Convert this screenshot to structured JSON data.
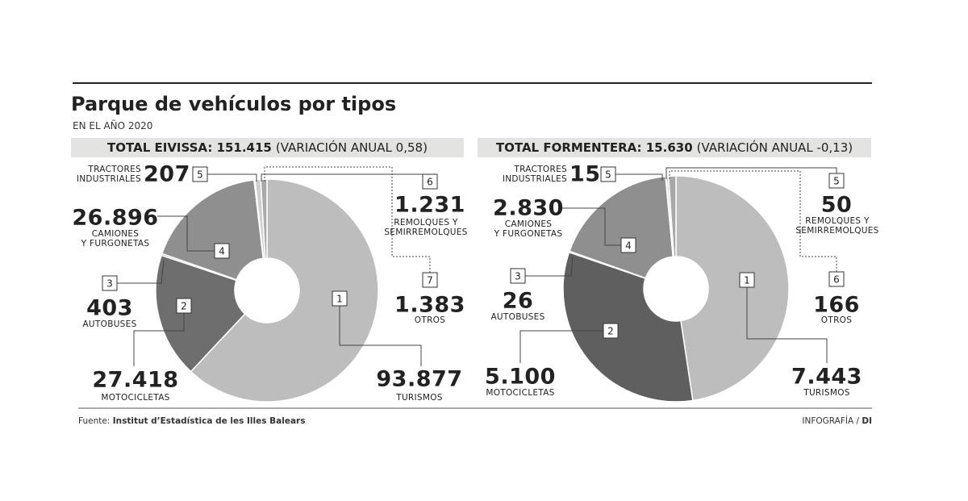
{
  "title": "Parque de vehículos por tipos",
  "subtitle": "EN EL AÑO 2020",
  "source_label": "Fuente:",
  "source": "Institut d’Estadística de les Illes Balears",
  "credit_label": "INFOGRAFÍA /",
  "credit": "DI",
  "chart_data": [
    {
      "type": "pie",
      "title": "TOTAL EIVISSA: 151.415",
      "subtitle": "(VARIACIÓN ANUAL 0,58)",
      "categories": [
        "TURISMOS",
        "MOTOCICLETAS",
        "AUTOBUSES",
        "CAMIONES\nY FURGONETAS",
        "TRACTORES\nINDUSTRIALES",
        "REMOLQUES Y\nSEMIRREMOLQUES",
        "OTROS"
      ],
      "slice_numbers": [
        1,
        2,
        3,
        4,
        5,
        6,
        7
      ],
      "values": [
        93877,
        27418,
        403,
        26896,
        207,
        1231,
        1383
      ],
      "value_labels": [
        "93.877",
        "27.418",
        "403",
        "26.896",
        "207",
        "1.231",
        "1.383"
      ],
      "colors": [
        "#bdbdbd",
        "#6e6e6e",
        "#b5b5b5",
        "#8f8f8f",
        "#c4c4c4",
        "#cfcfcf",
        "#a9a9a9"
      ]
    },
    {
      "type": "pie",
      "title": "TOTAL FORMENTERA: 15.630",
      "subtitle": "(VARIACIÓN ANUAL -0,13)",
      "categories": [
        "TURISMOS",
        "MOTOCICLETAS",
        "AUTOBUSES",
        "CAMIONES\nY FURGONETAS",
        "TRACTORES\nINDUSTRIALES",
        "REMOLQUES Y\nSEMIRREMOLQUES",
        "OTROS"
      ],
      "slice_numbers": [
        1,
        2,
        3,
        4,
        5,
        5,
        6
      ],
      "values": [
        7443,
        5100,
        26,
        2830,
        15,
        50,
        166
      ],
      "value_labels": [
        "7.443",
        "5.100",
        "26",
        "2.830",
        "15",
        "50",
        "166"
      ],
      "colors": [
        "#bdbdbd",
        "#5f5f5f",
        "#b5b5b5",
        "#8f8f8f",
        "#c4c4c4",
        "#cfcfcf",
        "#a9a9a9"
      ]
    }
  ]
}
